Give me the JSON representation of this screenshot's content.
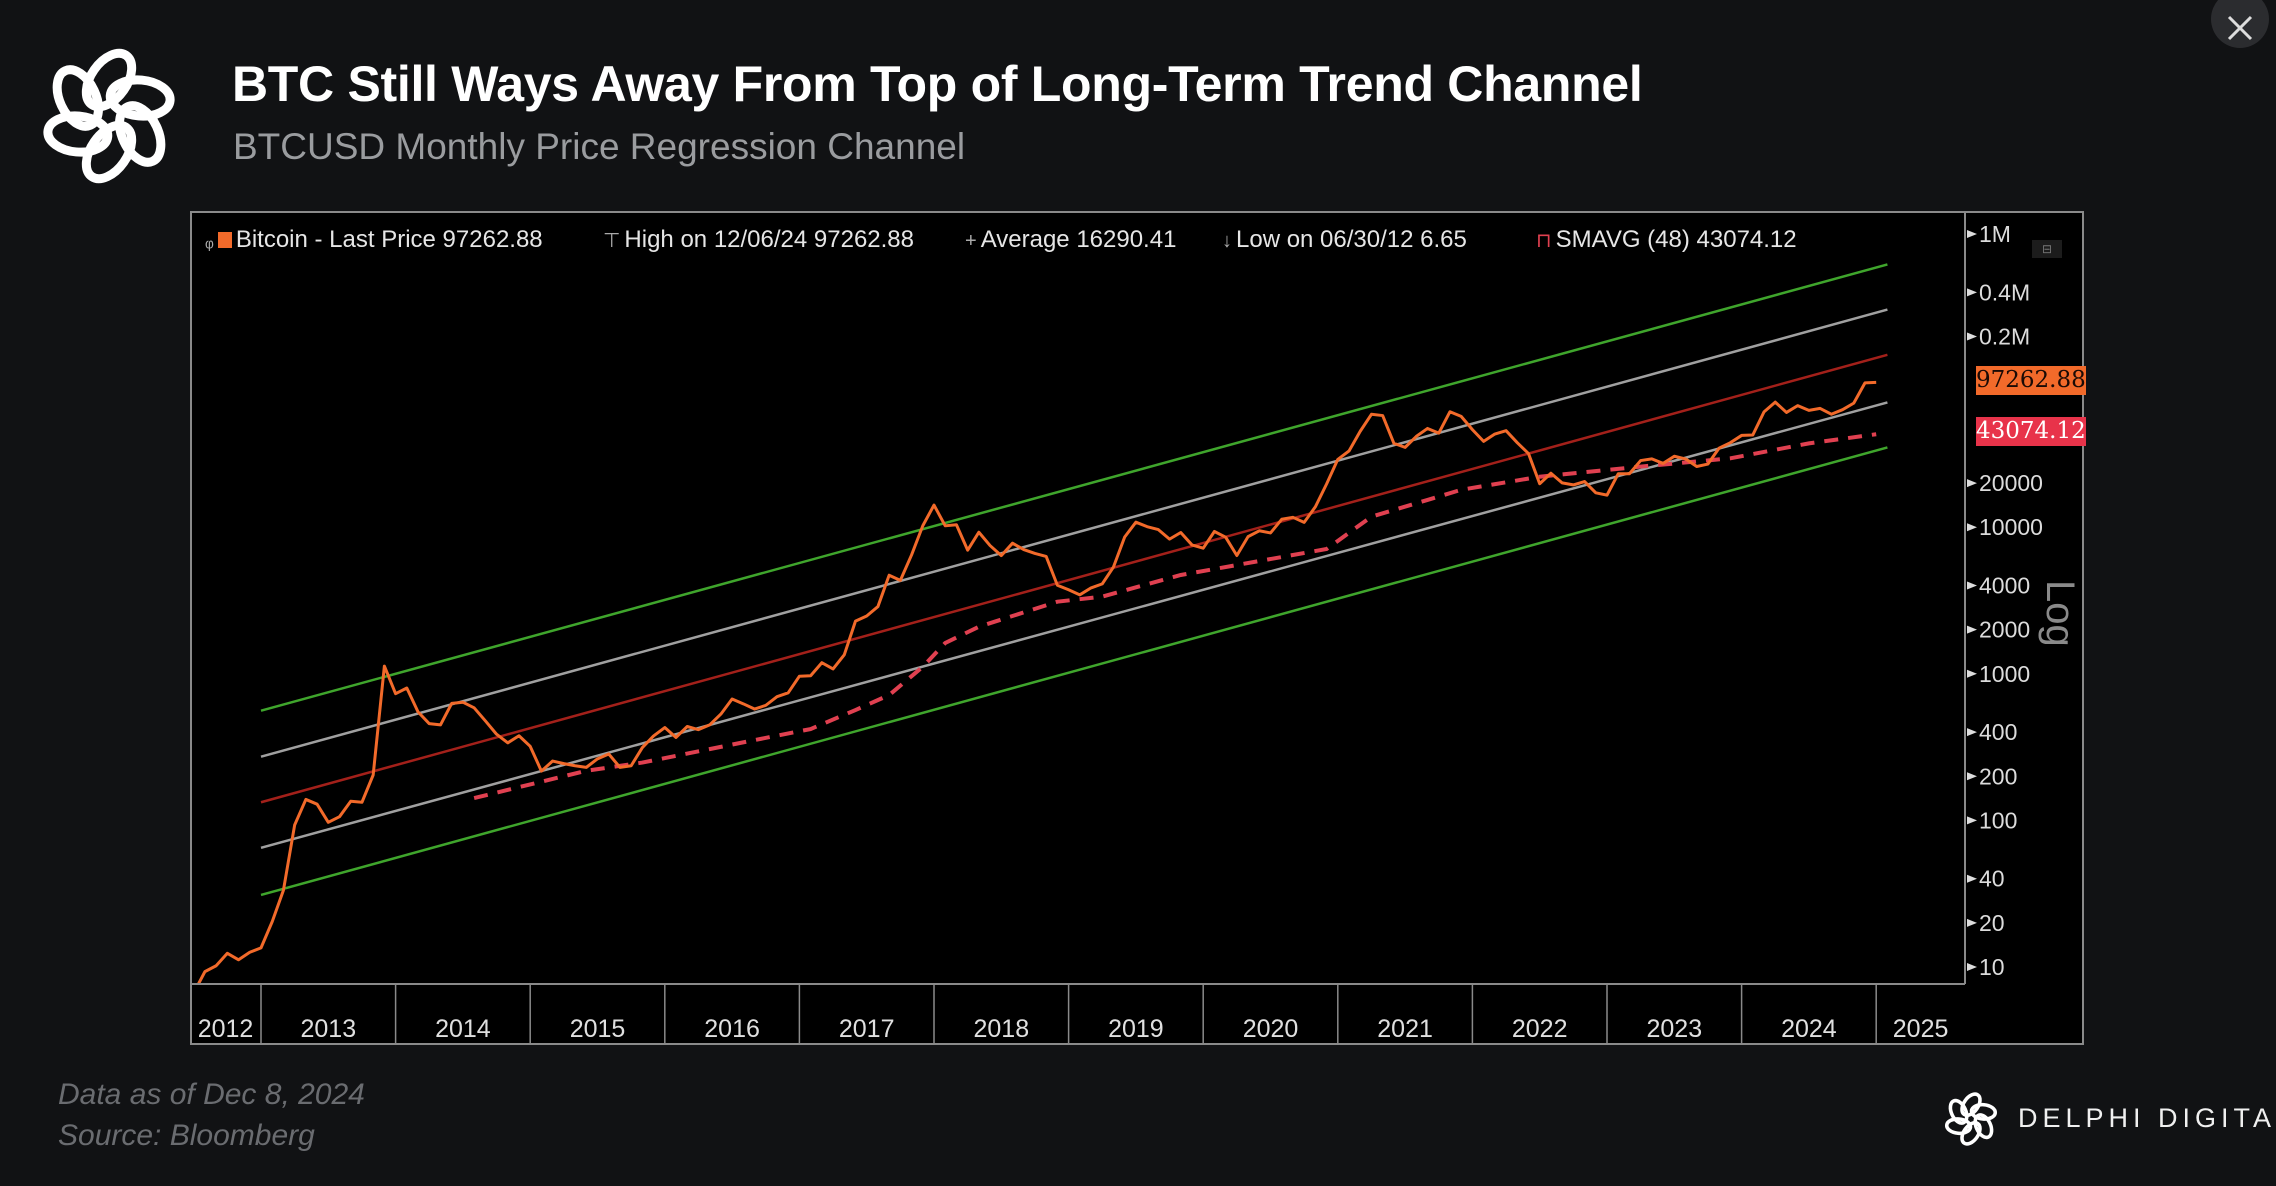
{
  "header": {
    "title": "BTC Still Ways Away From Top of Long-Term Trend Channel",
    "subtitle": "BTCUSD Monthly Price Regression Channel",
    "logo_icon": "delphi-braided-ring-logo"
  },
  "legend": {
    "bitcoin": "Bitcoin - Last Price 97262.88",
    "high": "High on 12/06/24 97262.88",
    "average": "Average 16290.41",
    "low": "Low on 06/30/12 6.65",
    "smavg": "SMAVG (48) 43074.12"
  },
  "price_tags": {
    "last": "97262.88",
    "smavg": "43074.12"
  },
  "axis_scale_label": "Log",
  "footer": {
    "data_as_of": "Data as of Dec 8, 2024",
    "source": "Source: Bloomberg",
    "brand": "DELPHI DIGITAL"
  },
  "colors": {
    "price": "#f26a2a",
    "smavg": "#e04050",
    "channel_outer": "#3fa52c",
    "channel_inner": "#a0a0a0",
    "channel_center": "#a3201a",
    "last_tag": "#f26a2a",
    "smavg_tag": "#e8334a"
  },
  "chart_data": {
    "type": "line",
    "title": "BTC Still Ways Away From Top of Long-Term Trend Channel",
    "subtitle": "BTCUSD Monthly Price Regression Channel",
    "y_scale": "log",
    "y_axis_side": "right",
    "ylim": [
      7,
      1500000
    ],
    "xlim": [
      "2012-06",
      "2025-08"
    ],
    "x_tick_labels": [
      "2012",
      "2013",
      "2014",
      "2015",
      "2016",
      "2017",
      "2018",
      "2019",
      "2020",
      "2021",
      "2022",
      "2023",
      "2024",
      "2025"
    ],
    "y_ticks": [
      {
        "value": 1000000,
        "label": "1M"
      },
      {
        "value": 400000,
        "label": "0.4M"
      },
      {
        "value": 200000,
        "label": "0.2M"
      },
      {
        "value": 20000,
        "label": "20000"
      },
      {
        "value": 10000,
        "label": "10000"
      },
      {
        "value": 4000,
        "label": "4000"
      },
      {
        "value": 2000,
        "label": "2000"
      },
      {
        "value": 1000,
        "label": "1000"
      },
      {
        "value": 400,
        "label": "400"
      },
      {
        "value": 200,
        "label": "200"
      },
      {
        "value": 100,
        "label": "100"
      },
      {
        "value": 40,
        "label": "40"
      },
      {
        "value": 20,
        "label": "20"
      },
      {
        "value": 10,
        "label": "10"
      }
    ],
    "grid": false,
    "legend_placement": "top",
    "price_monthly_by_year": {
      "2012": [
        null,
        null,
        null,
        null,
        null,
        6.65,
        9.3,
        10.2,
        12.4,
        11.2,
        12.6,
        13.5
      ],
      "2013": [
        20.4,
        33.4,
        93,
        139,
        129,
        97,
        106,
        135,
        133,
        204,
        1129,
        732
      ],
      "2014": [
        800,
        550,
        457,
        448,
        628,
        640,
        586,
        478,
        387,
        338,
        378,
        320
      ],
      "2015": [
        217,
        254,
        244,
        236,
        230,
        263,
        284,
        230,
        236,
        314,
        377,
        430
      ],
      "2016": [
        368,
        437,
        416,
        448,
        531,
        673,
        624,
        575,
        609,
        698,
        742,
        963
      ],
      "2017": [
        970,
        1190,
        1080,
        1348,
        2286,
        2480,
        2875,
        4703,
        4338,
        6468,
        10233,
        14156
      ],
      "2018": [
        10221,
        10397,
        6973,
        9240,
        7494,
        6404,
        7780,
        7037,
        6625,
        6317,
        4017,
        3742
      ],
      "2019": [
        3457,
        3854,
        4105,
        5350,
        8574,
        10817,
        10085,
        9630,
        8293,
        9199,
        7569,
        7193
      ],
      "2020": [
        9350,
        8544,
        6410,
        8624,
        9454,
        9137,
        11323,
        11680,
        10784,
        13781,
        19713,
        28990
      ],
      "2021": [
        33114,
        45137,
        58918,
        57750,
        37332,
        35040,
        41626,
        47166,
        43790,
        61318,
        57005,
        46306
      ],
      "2022": [
        38483,
        43194,
        45538,
        37714,
        31792,
        19785,
        23336,
        20050,
        19431,
        20495,
        17168,
        16548
      ],
      "2023": [
        23139,
        23147,
        28478,
        29268,
        27219,
        30477,
        29230,
        25940,
        26967,
        34667,
        37712,
        42265
      ],
      "2024": [
        42582,
        61198,
        71333,
        60636,
        67491,
        62678,
        64620,
        58970,
        63329,
        70215,
        96449,
        97262.88
      ]
    },
    "series": [
      {
        "name": "Bitcoin - Last Price",
        "source": "price_monthly_by_year"
      },
      {
        "name": "SMAVG (48)",
        "style": "dashed",
        "points": [
          [
            "2014-07",
            142
          ],
          [
            "2015-05",
            218
          ],
          [
            "2015-10",
            248
          ],
          [
            "2016-08",
            353
          ],
          [
            "2017-01",
            420
          ],
          [
            "2017-05",
            566
          ],
          [
            "2017-08",
            716
          ],
          [
            "2017-11",
            1117
          ],
          [
            "2018-01",
            1622
          ],
          [
            "2018-04",
            2095
          ],
          [
            "2018-11",
            3104
          ],
          [
            "2019-03",
            3360
          ],
          [
            "2019-10",
            4720
          ],
          [
            "2020-03",
            5520
          ],
          [
            "2020-11",
            7100
          ],
          [
            "2021-03",
            11800
          ],
          [
            "2021-08",
            15350
          ],
          [
            "2021-11",
            18000
          ],
          [
            "2022-06",
            22100
          ],
          [
            "2023-03",
            25900
          ],
          [
            "2023-11",
            29500
          ],
          [
            "2024-06",
            37300
          ],
          [
            "2024-12",
            43074.12
          ]
        ]
      }
    ],
    "regression_channel": [
      {
        "line": "upper-outer",
        "color": "#3fa52c",
        "from": [
          "2013-01",
          560
        ],
        "to": [
          "2025-01",
          620000
        ]
      },
      {
        "line": "upper-inner",
        "color": "#a0a0a0",
        "from": [
          "2013-01",
          272
        ],
        "to": [
          "2025-01",
          305000
        ]
      },
      {
        "line": "center",
        "color": "#a3201a",
        "from": [
          "2013-01",
          133
        ],
        "to": [
          "2025-01",
          150000
        ]
      },
      {
        "line": "lower-inner",
        "color": "#a0a0a0",
        "from": [
          "2013-01",
          65
        ],
        "to": [
          "2025-01",
          71000
        ]
      },
      {
        "line": "lower-outer",
        "color": "#3fa52c",
        "from": [
          "2013-01",
          31
        ],
        "to": [
          "2025-01",
          35000
        ]
      }
    ]
  }
}
